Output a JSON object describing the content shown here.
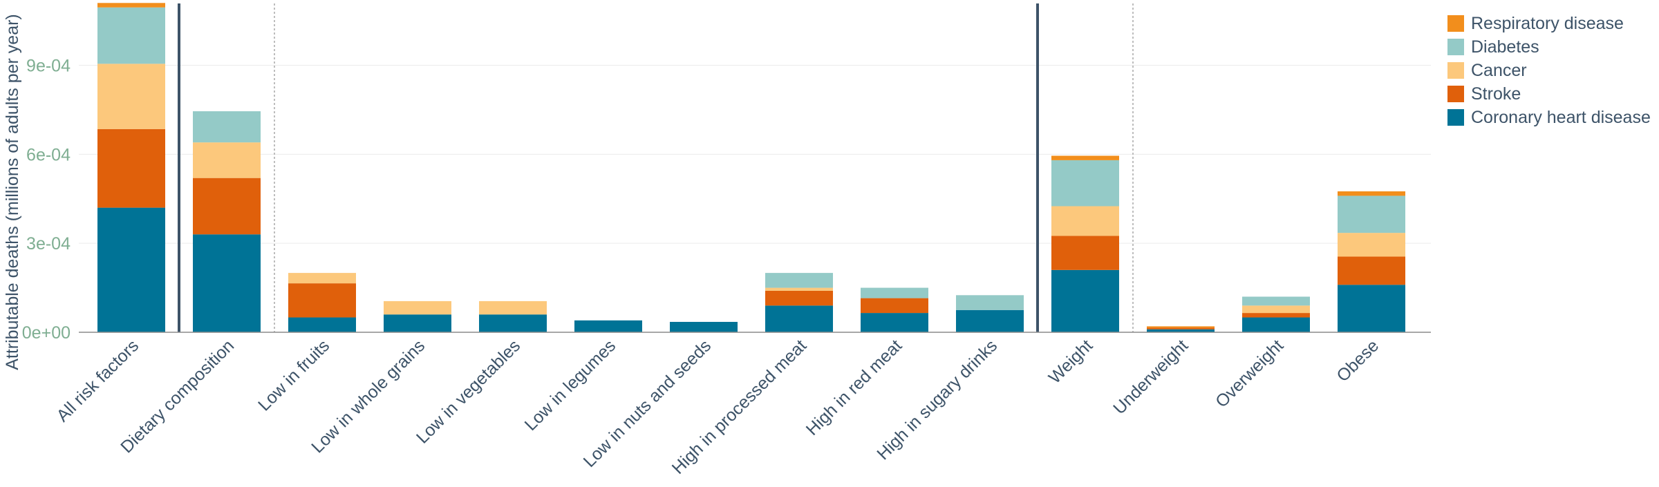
{
  "chart_data": {
    "type": "bar",
    "stacked": true,
    "ylabel": "Attributable deaths (millions of adults per year)",
    "ylim": [
      0,
      0.00112
    ],
    "yticks": [
      {
        "value": 0,
        "label": "0e+00"
      },
      {
        "value": 0.0003,
        "label": "3e-04"
      },
      {
        "value": 0.0006,
        "label": "6e-04"
      },
      {
        "value": 0.0009,
        "label": "9e-04"
      }
    ],
    "grid": true,
    "legend_position": "top-right",
    "categories": [
      "All risk factors",
      "Dietary composition",
      "Low in fruits",
      "Low in whole grains",
      "Low in vegetables",
      "Low in legumes",
      "Low in nuts and seeds",
      "High in processed meat",
      "High in red meat",
      "High in sugary drinks",
      "Weight",
      "Underweight",
      "Overweight",
      "Obese"
    ],
    "series": [
      {
        "name": "Coronary heart disease",
        "color": "#007396",
        "values": [
          0.00042,
          0.00033,
          5e-05,
          6e-05,
          6e-05,
          4e-05,
          3.5e-05,
          9e-05,
          6.5e-05,
          7.5e-05,
          0.00021,
          1e-05,
          5e-05,
          0.00016
        ]
      },
      {
        "name": "Stroke",
        "color": "#e0600b",
        "values": [
          0.000265,
          0.00019,
          0.000115,
          0.0,
          0.0,
          0.0,
          0.0,
          5e-05,
          5e-05,
          0.0,
          0.000115,
          5e-06,
          1.5e-05,
          9.5e-05
        ]
      },
      {
        "name": "Cancer",
        "color": "#fcc87c",
        "values": [
          0.00022,
          0.00012,
          3.5e-05,
          4.5e-05,
          4.5e-05,
          0.0,
          0.0,
          1e-05,
          0.0,
          0.0,
          0.0001,
          0.0,
          2.5e-05,
          8e-05
        ]
      },
      {
        "name": "Diabetes",
        "color": "#94cac7",
        "values": [
          0.00019,
          0.000105,
          0.0,
          0.0,
          0.0,
          0.0,
          0.0,
          5e-05,
          3.5e-05,
          5e-05,
          0.000155,
          0.0,
          3e-05,
          0.000125
        ]
      },
      {
        "name": "Respiratory disease",
        "color": "#f28e1c",
        "values": [
          1.5e-05,
          0.0,
          0.0,
          0.0,
          0.0,
          0.0,
          0.0,
          0.0,
          0.0,
          0.0,
          1.5e-05,
          5e-06,
          0.0,
          1.5e-05
        ]
      }
    ],
    "group_separators": [
      {
        "after_category": 0,
        "style": "solid"
      },
      {
        "after_category": 1,
        "style": "dotted"
      },
      {
        "after_category": 9,
        "style": "solid"
      },
      {
        "after_category": 10,
        "style": "dotted"
      }
    ]
  }
}
